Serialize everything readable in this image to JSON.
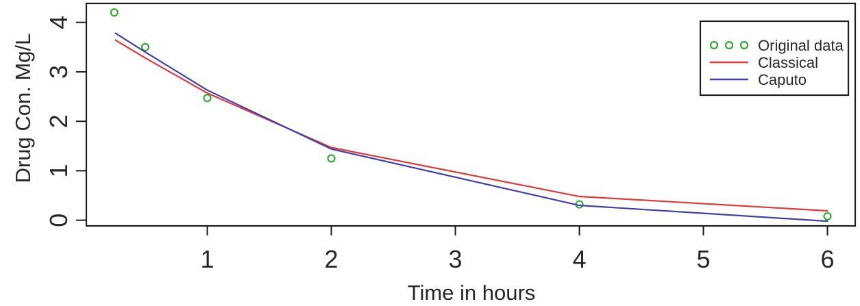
{
  "page": {
    "background": "#ffffff"
  },
  "chart_data": {
    "type": "line",
    "title": "",
    "xlabel": "Time in hours",
    "ylabel": "Drug Con. Mg/L",
    "x_ticks": [
      1,
      2,
      3,
      4,
      5,
      6
    ],
    "y_ticks": [
      0,
      1,
      2,
      3,
      4
    ],
    "xlim": [
      0.03,
      6.22
    ],
    "ylim": [
      -0.12,
      4.38
    ],
    "grid": false,
    "legend_position": "top-right",
    "frame_color": "#1c1c1c",
    "text_color": "#26262b",
    "series": [
      {
        "name": "Original data",
        "kind": "scatter",
        "marker": "open-circle",
        "color": "#35ab35",
        "x": [
          0.25,
          0.5,
          1,
          2,
          4,
          6
        ],
        "y": [
          4.2,
          3.5,
          2.47,
          1.25,
          0.32,
          0.08
        ]
      },
      {
        "name": "Classical",
        "kind": "line",
        "color": "#dd3a3a",
        "x": [
          0.26,
          0.5,
          1,
          2,
          4,
          6
        ],
        "y": [
          3.64,
          3.28,
          2.57,
          1.47,
          0.48,
          0.19
        ]
      },
      {
        "name": "Caputo",
        "kind": "line",
        "color": "#4040a8",
        "x": [
          0.26,
          0.5,
          1,
          2,
          4,
          6
        ],
        "y": [
          3.78,
          3.4,
          2.63,
          1.44,
          0.3,
          -0.02
        ]
      }
    ]
  }
}
